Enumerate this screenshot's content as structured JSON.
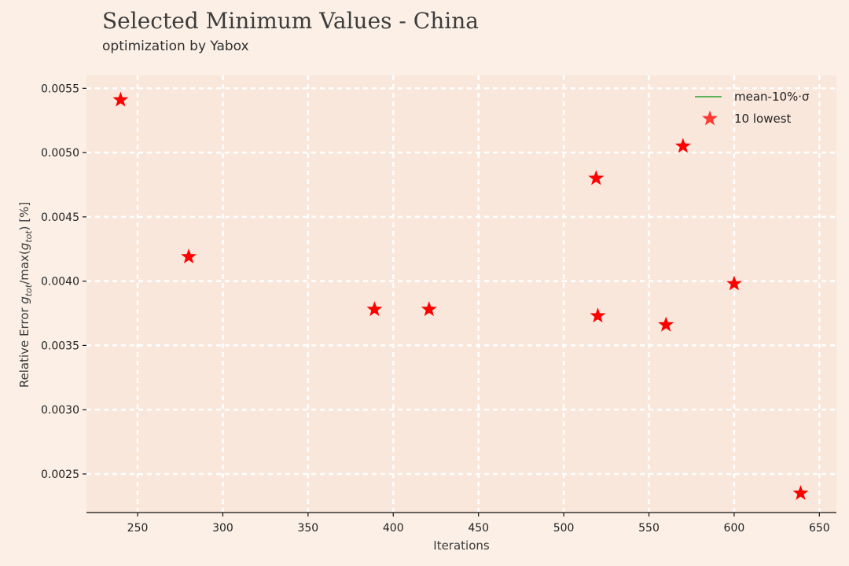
{
  "chart_data": {
    "type": "scatter",
    "title": "Selected Minimum Values - China",
    "subtitle": "optimization by Yabox",
    "xlabel": "Iterations",
    "ylabel": "Relative Error g_tot/max(g_tot) [%]",
    "ylabel_parts": {
      "prefix": "Relative Error ",
      "g1": "g",
      "sub1": "tot",
      "mid": "/max(",
      "g2": "g",
      "sub2": "tot",
      "suffix": ") [%]"
    },
    "xlim": [
      220,
      660
    ],
    "ylim": [
      0.0022,
      0.0056
    ],
    "xticks": [
      250,
      300,
      350,
      400,
      450,
      500,
      550,
      600,
      650
    ],
    "yticks": [
      0.0025,
      0.003,
      0.0035,
      0.004,
      0.0045,
      0.005,
      0.0055
    ],
    "ytick_labels": [
      "0.0025",
      "0.0030",
      "0.0035",
      "0.0040",
      "0.0045",
      "0.0050",
      "0.0055"
    ],
    "grid": true,
    "legend_position": "top-right",
    "legend": [
      {
        "label": "mean-10%·σ",
        "marker": "line",
        "color": "#2ca02c"
      },
      {
        "label": "10 lowest",
        "marker": "star",
        "color": "#ff0000"
      }
    ],
    "series": [
      {
        "name": "10 lowest",
        "marker": "star",
        "color": "#ff0000",
        "points": [
          {
            "x": 240,
            "y": 0.00541
          },
          {
            "x": 280,
            "y": 0.00419
          },
          {
            "x": 389,
            "y": 0.00378
          },
          {
            "x": 421,
            "y": 0.00378
          },
          {
            "x": 519,
            "y": 0.0048
          },
          {
            "x": 520,
            "y": 0.00373
          },
          {
            "x": 560,
            "y": 0.00366
          },
          {
            "x": 570,
            "y": 0.00505
          },
          {
            "x": 600,
            "y": 0.00398
          },
          {
            "x": 639,
            "y": 0.00235
          }
        ]
      }
    ],
    "colors": {
      "background": "#fcf0e6",
      "plot_background": "#f9e7dc",
      "grid": "#ffffff",
      "marker": "#ff0000"
    }
  }
}
